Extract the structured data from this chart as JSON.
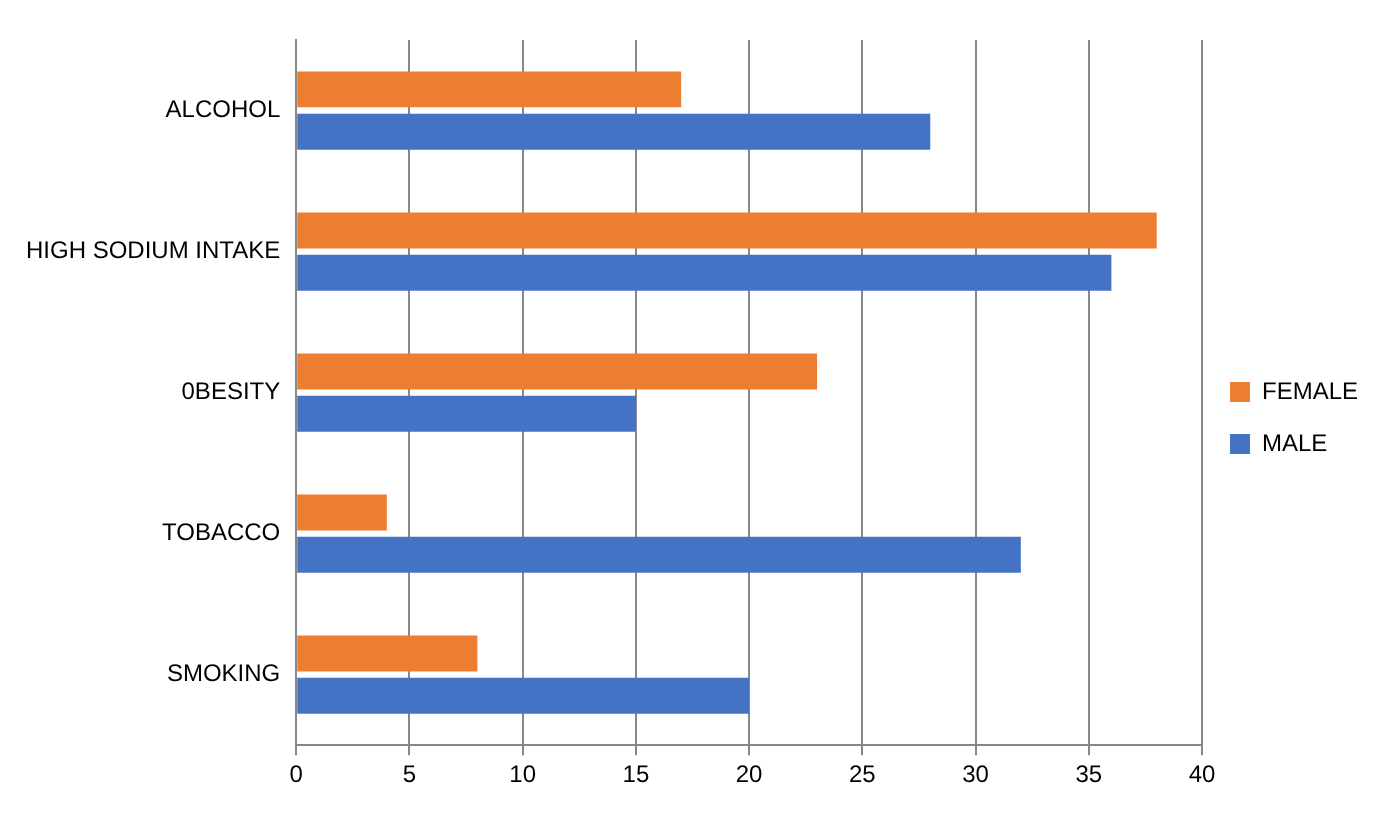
{
  "chart_data": {
    "type": "bar",
    "orientation": "horizontal",
    "categories": [
      "ALCOHOL",
      "HIGH SODIUM INTAKE",
      "0BESITY",
      "TOBACCO",
      "SMOKING"
    ],
    "series": [
      {
        "name": "FEMALE",
        "color": "#ed7d31",
        "values": [
          17,
          38,
          23,
          4,
          8
        ]
      },
      {
        "name": "MALE",
        "color": "#4472c4",
        "values": [
          28,
          36,
          15,
          32,
          20
        ]
      }
    ],
    "xlim": [
      0,
      40
    ],
    "xticks": [
      0,
      5,
      10,
      15,
      20,
      25,
      30,
      35,
      40
    ],
    "grid": "x",
    "legend": "right"
  }
}
